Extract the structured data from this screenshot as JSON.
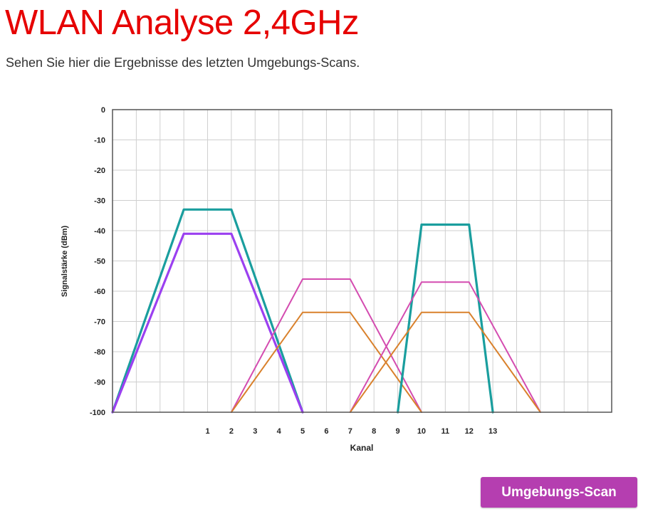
{
  "page": {
    "title": "WLAN Analyse 2,4GHz",
    "subtitle": "Sehen Sie hier die Ergebnisse des letzten Umgebungs-Scans."
  },
  "scan_button": {
    "label": "Umgebungs-Scan"
  },
  "colors": {
    "title": "#e60000",
    "button": "#b53eb0"
  },
  "chart_data": {
    "type": "line",
    "xlabel": "Kanal",
    "ylabel": "Signalstärke (dBm)",
    "ylim": [
      -100,
      0
    ],
    "xlim": [
      -3,
      18
    ],
    "grid": true,
    "y_ticks": [
      "0",
      "-10",
      "-20",
      "-30",
      "-40",
      "-50",
      "-60",
      "-70",
      "-80",
      "-90",
      "-100"
    ],
    "x_ticks": [
      "1",
      "2",
      "3",
      "4",
      "5",
      "6",
      "7",
      "8",
      "9",
      "10",
      "11",
      "12",
      "13"
    ],
    "series": [
      {
        "color": "#1a9e9e",
        "points": [
          [
            -3,
            -100
          ],
          [
            0,
            -33
          ],
          [
            2,
            -33
          ],
          [
            5,
            -100
          ]
        ]
      },
      {
        "color": "#9b40f0",
        "points": [
          [
            -3,
            -100
          ],
          [
            0,
            -41
          ],
          [
            2,
            -41
          ],
          [
            5,
            -100
          ]
        ]
      },
      {
        "color": "#d44cb0",
        "points": [
          [
            2,
            -100
          ],
          [
            5,
            -56
          ],
          [
            7,
            -56
          ],
          [
            10,
            -100
          ]
        ]
      },
      {
        "color": "#d9812c",
        "points": [
          [
            2,
            -100
          ],
          [
            5,
            -67
          ],
          [
            7,
            -67
          ],
          [
            10,
            -100
          ]
        ]
      },
      {
        "color": "#1a9e9e",
        "points": [
          [
            9,
            -100
          ],
          [
            10,
            -38
          ],
          [
            12,
            -38
          ],
          [
            13,
            -100
          ]
        ]
      },
      {
        "color": "#d44cb0",
        "points": [
          [
            7,
            -100
          ],
          [
            10,
            -57
          ],
          [
            12,
            -57
          ],
          [
            15,
            -100
          ]
        ]
      },
      {
        "color": "#d9812c",
        "points": [
          [
            7,
            -100
          ],
          [
            10,
            -67
          ],
          [
            12,
            -67
          ],
          [
            15,
            -100
          ]
        ]
      }
    ]
  }
}
